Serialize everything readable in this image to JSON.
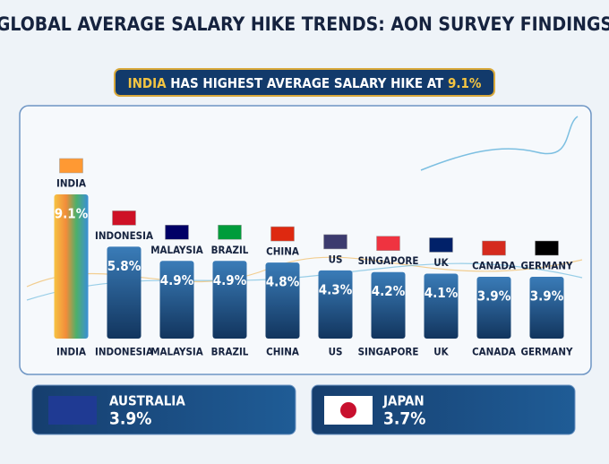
{
  "chart_data": {
    "type": "bar",
    "title": "GLOBAL AVERAGE SALARY HIKE TRENDS: AON SURVEY FINDINGS",
    "subtitle": [
      "INDIA",
      " HAS HIGHEST AVERAGE SALARY HIKE AT ",
      "9.1%"
    ],
    "categories": [
      "INDIA",
      "INDONESIA",
      "MALAYSIA",
      "BRAZIL",
      "CHINA",
      "US",
      "SINGAPORE",
      "UK",
      "CANADA",
      "GERMANY"
    ],
    "values": [
      9.1,
      5.8,
      4.9,
      4.9,
      4.8,
      4.3,
      4.2,
      4.1,
      3.9,
      3.9
    ],
    "value_labels": [
      "9.1%",
      "5.8%",
      "4.9%",
      "4.9%",
      "4.8%",
      "4.3%",
      "4.2%",
      "4.1%",
      "3.9%",
      "3.9%"
    ],
    "highlights": [
      {
        "name": "AUSTRALIA",
        "label": "3.9%"
      },
      {
        "name": "JAPAN",
        "label": "3.7%"
      }
    ]
  }
}
